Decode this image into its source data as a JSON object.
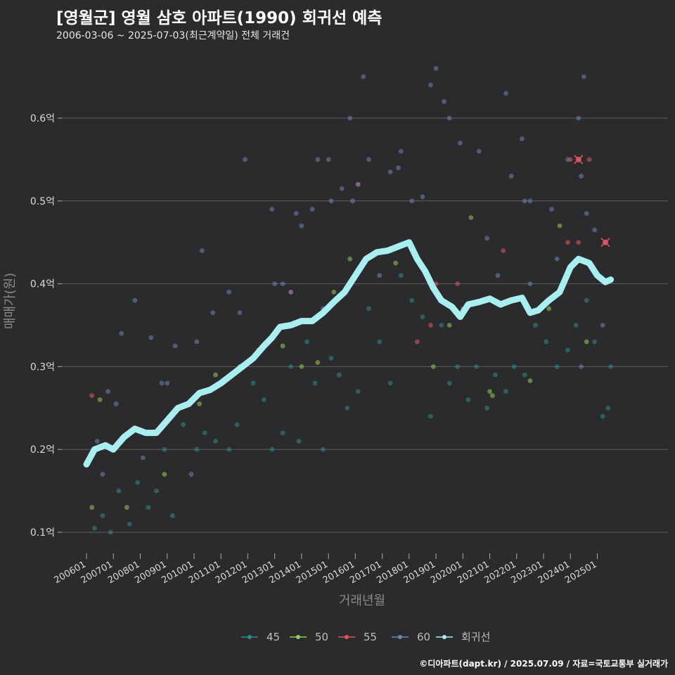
{
  "header": {
    "title": "[영월군] 영월 삼호 아파트(1990) 회귀선 예측",
    "subtitle": "2006-03-06 ~ 2025-07-03(최근계약일) 전체 거래건"
  },
  "footer": {
    "credit": "©디아파트(dapt.kr) / 2025.07.09 / 자료=국토교통부 실거래가"
  },
  "colors": {
    "background": "#2b2b2d",
    "grid": "#5e5e60",
    "s45": "#2f8a8a",
    "s50": "#8fcf5a",
    "s55": "#e05560",
    "s60": "#6e83b4",
    "regression": "#a9eef0"
  },
  "chart_data": {
    "type": "scatter",
    "xlabel": "거래년월",
    "ylabel": "매매가(원)",
    "ylim": [
      0.075,
      0.685
    ],
    "yticks": [
      {
        "v": 0.1,
        "label": "0.1억"
      },
      {
        "v": 0.2,
        "label": "0.2억"
      },
      {
        "v": 0.3,
        "label": "0.3억"
      },
      {
        "v": 0.4,
        "label": "0.4억"
      },
      {
        "v": 0.5,
        "label": "0.5억"
      },
      {
        "v": 0.6,
        "label": "0.6억"
      }
    ],
    "xticks": [
      "200601",
      "200701",
      "200801",
      "200901",
      "201001",
      "201101",
      "201201",
      "201301",
      "201401",
      "201501",
      "201601",
      "201701",
      "201801",
      "201901",
      "202001",
      "202101",
      "202201",
      "202301",
      "202401",
      "202501"
    ],
    "grid": true,
    "legend_position": "bottom",
    "legend": [
      {
        "name": "45",
        "color_key": "s45"
      },
      {
        "name": "50",
        "color_key": "s50"
      },
      {
        "name": "55",
        "color_key": "s55"
      },
      {
        "name": "60",
        "color_key": "s60"
      },
      {
        "name": "회귀선",
        "color_key": "regression"
      }
    ],
    "series": [
      {
        "name": "45",
        "color_key": "s45",
        "points": [
          [
            2006.3,
            0.105
          ],
          [
            2006.6,
            0.12
          ],
          [
            2006.9,
            0.1
          ],
          [
            2007.2,
            0.15
          ],
          [
            2007.6,
            0.11
          ],
          [
            2007.9,
            0.16
          ],
          [
            2008.3,
            0.13
          ],
          [
            2008.6,
            0.15
          ],
          [
            2008.9,
            0.2
          ],
          [
            2009.2,
            0.12
          ],
          [
            2009.6,
            0.23
          ],
          [
            2010.1,
            0.2
          ],
          [
            2010.4,
            0.22
          ],
          [
            2010.8,
            0.21
          ],
          [
            2011.3,
            0.2
          ],
          [
            2011.6,
            0.23
          ],
          [
            2012.2,
            0.28
          ],
          [
            2012.6,
            0.26
          ],
          [
            2012.9,
            0.2
          ],
          [
            2013.3,
            0.22
          ],
          [
            2013.6,
            0.3
          ],
          [
            2013.9,
            0.21
          ],
          [
            2014.2,
            0.33
          ],
          [
            2014.5,
            0.28
          ],
          [
            2014.8,
            0.2
          ],
          [
            2015.1,
            0.31
          ],
          [
            2015.4,
            0.29
          ],
          [
            2015.7,
            0.25
          ],
          [
            2016.1,
            0.27
          ],
          [
            2016.5,
            0.37
          ],
          [
            2016.9,
            0.33
          ],
          [
            2017.3,
            0.28
          ],
          [
            2017.7,
            0.41
          ],
          [
            2018.1,
            0.38
          ],
          [
            2018.5,
            0.36
          ],
          [
            2018.8,
            0.24
          ],
          [
            2019.2,
            0.35
          ],
          [
            2019.5,
            0.28
          ],
          [
            2019.8,
            0.3
          ],
          [
            2020.2,
            0.26
          ],
          [
            2020.5,
            0.3
          ],
          [
            2020.9,
            0.25
          ],
          [
            2021.2,
            0.29
          ],
          [
            2021.6,
            0.27
          ],
          [
            2021.9,
            0.3
          ],
          [
            2022.3,
            0.29
          ],
          [
            2022.7,
            0.35
          ],
          [
            2023.1,
            0.33
          ],
          [
            2023.5,
            0.3
          ],
          [
            2023.9,
            0.32
          ],
          [
            2024.2,
            0.35
          ],
          [
            2024.6,
            0.38
          ],
          [
            2024.9,
            0.33
          ],
          [
            2025.2,
            0.24
          ],
          [
            2025.4,
            0.25
          ],
          [
            2025.5,
            0.3
          ]
        ]
      },
      {
        "name": "50",
        "color_key": "s50",
        "points": [
          [
            2006.2,
            0.13
          ],
          [
            2006.5,
            0.26
          ],
          [
            2007.5,
            0.13
          ],
          [
            2008.9,
            0.17
          ],
          [
            2010.2,
            0.255
          ],
          [
            2010.8,
            0.29
          ],
          [
            2011.7,
            0.3
          ],
          [
            2012.4,
            0.32
          ],
          [
            2013.3,
            0.325
          ],
          [
            2014.0,
            0.3
          ],
          [
            2014.6,
            0.305
          ],
          [
            2015.2,
            0.39
          ],
          [
            2015.8,
            0.43
          ],
          [
            2017.5,
            0.425
          ],
          [
            2018.9,
            0.3
          ],
          [
            2019.5,
            0.35
          ],
          [
            2020.3,
            0.48
          ],
          [
            2021.0,
            0.27
          ],
          [
            2021.1,
            0.265
          ],
          [
            2022.5,
            0.283
          ],
          [
            2023.2,
            0.37
          ],
          [
            2023.6,
            0.47
          ],
          [
            2024.6,
            0.33
          ]
        ]
      },
      {
        "name": "55",
        "color_key": "s55",
        "points": [
          [
            2006.2,
            0.265
          ],
          [
            2013.6,
            0.39
          ],
          [
            2016.1,
            0.52
          ],
          [
            2018.3,
            0.33
          ],
          [
            2018.8,
            0.35
          ],
          [
            2019.0,
            0.4
          ],
          [
            2019.8,
            0.4
          ],
          [
            2021.5,
            0.44
          ],
          [
            2023.9,
            0.45
          ],
          [
            2024.0,
            0.55
          ],
          [
            2024.3,
            0.45
          ],
          [
            2024.7,
            0.55
          ],
          [
            2025.3,
            0.45
          ]
        ]
      },
      {
        "name": "60",
        "color_key": "s60",
        "points": [
          [
            2006.4,
            0.21
          ],
          [
            2006.6,
            0.17
          ],
          [
            2006.8,
            0.27
          ],
          [
            2007.1,
            0.255
          ],
          [
            2007.3,
            0.34
          ],
          [
            2007.8,
            0.38
          ],
          [
            2008.1,
            0.19
          ],
          [
            2008.4,
            0.335
          ],
          [
            2008.8,
            0.28
          ],
          [
            2009.0,
            0.28
          ],
          [
            2009.3,
            0.325
          ],
          [
            2009.9,
            0.17
          ],
          [
            2010.1,
            0.33
          ],
          [
            2010.3,
            0.44
          ],
          [
            2010.7,
            0.365
          ],
          [
            2011.3,
            0.39
          ],
          [
            2011.7,
            0.365
          ],
          [
            2011.9,
            0.55
          ],
          [
            2012.9,
            0.49
          ],
          [
            2013.0,
            0.4
          ],
          [
            2013.3,
            0.4
          ],
          [
            2013.6,
            0.39
          ],
          [
            2013.8,
            0.485
          ],
          [
            2014.0,
            0.47
          ],
          [
            2014.4,
            0.49
          ],
          [
            2014.6,
            0.55
          ],
          [
            2014.8,
            0.37
          ],
          [
            2015.0,
            0.55
          ],
          [
            2015.1,
            0.5
          ],
          [
            2015.5,
            0.515
          ],
          [
            2015.8,
            0.6
          ],
          [
            2015.9,
            0.5
          ],
          [
            2016.1,
            0.52
          ],
          [
            2016.3,
            0.65
          ],
          [
            2016.5,
            0.55
          ],
          [
            2016.9,
            0.41
          ],
          [
            2017.3,
            0.535
          ],
          [
            2017.6,
            0.54
          ],
          [
            2017.7,
            0.56
          ],
          [
            2018.1,
            0.5
          ],
          [
            2018.5,
            0.505
          ],
          [
            2018.8,
            0.64
          ],
          [
            2019.0,
            0.66
          ],
          [
            2019.3,
            0.62
          ],
          [
            2019.5,
            0.6
          ],
          [
            2019.9,
            0.57
          ],
          [
            2020.0,
            0.37
          ],
          [
            2020.6,
            0.56
          ],
          [
            2020.9,
            0.455
          ],
          [
            2021.3,
            0.41
          ],
          [
            2021.6,
            0.63
          ],
          [
            2021.8,
            0.53
          ],
          [
            2022.2,
            0.575
          ],
          [
            2022.3,
            0.5
          ],
          [
            2022.5,
            0.5
          ],
          [
            2022.5,
            0.4
          ],
          [
            2022.9,
            0.37
          ],
          [
            2023.3,
            0.49
          ],
          [
            2023.5,
            0.43
          ],
          [
            2023.9,
            0.55
          ],
          [
            2024.3,
            0.6
          ],
          [
            2024.4,
            0.53
          ],
          [
            2024.5,
            0.65
          ],
          [
            2024.6,
            0.485
          ],
          [
            2024.9,
            0.465
          ],
          [
            2024.4,
            0.3
          ],
          [
            2025.2,
            0.35
          ]
        ]
      }
    ],
    "highlighted": [
      [
        2024.3,
        0.55
      ],
      [
        2025.3,
        0.45
      ]
    ],
    "regression": {
      "name": "회귀선",
      "points": [
        [
          2006.0,
          0.182
        ],
        [
          2006.3,
          0.2
        ],
        [
          2006.7,
          0.205
        ],
        [
          2007.0,
          0.2
        ],
        [
          2007.4,
          0.215
        ],
        [
          2007.8,
          0.225
        ],
        [
          2008.2,
          0.22
        ],
        [
          2008.6,
          0.22
        ],
        [
          2009.0,
          0.235
        ],
        [
          2009.4,
          0.25
        ],
        [
          2009.8,
          0.255
        ],
        [
          2010.2,
          0.268
        ],
        [
          2010.6,
          0.272
        ],
        [
          2011.0,
          0.28
        ],
        [
          2011.4,
          0.29
        ],
        [
          2011.8,
          0.3
        ],
        [
          2012.2,
          0.31
        ],
        [
          2012.6,
          0.325
        ],
        [
          2012.9,
          0.335
        ],
        [
          2013.2,
          0.348
        ],
        [
          2013.6,
          0.35
        ],
        [
          2014.0,
          0.355
        ],
        [
          2014.4,
          0.355
        ],
        [
          2014.8,
          0.365
        ],
        [
          2015.2,
          0.378
        ],
        [
          2015.6,
          0.39
        ],
        [
          2016.0,
          0.41
        ],
        [
          2016.4,
          0.43
        ],
        [
          2016.8,
          0.438
        ],
        [
          2017.2,
          0.44
        ],
        [
          2017.6,
          0.445
        ],
        [
          2018.0,
          0.45
        ],
        [
          2018.3,
          0.43
        ],
        [
          2018.6,
          0.415
        ],
        [
          2018.9,
          0.395
        ],
        [
          2019.2,
          0.38
        ],
        [
          2019.6,
          0.372
        ],
        [
          2019.9,
          0.36
        ],
        [
          2020.2,
          0.375
        ],
        [
          2020.6,
          0.378
        ],
        [
          2021.0,
          0.382
        ],
        [
          2021.4,
          0.375
        ],
        [
          2021.8,
          0.38
        ],
        [
          2022.2,
          0.383
        ],
        [
          2022.5,
          0.365
        ],
        [
          2022.8,
          0.368
        ],
        [
          2023.2,
          0.38
        ],
        [
          2023.6,
          0.39
        ],
        [
          2024.0,
          0.42
        ],
        [
          2024.3,
          0.43
        ],
        [
          2024.7,
          0.425
        ],
        [
          2025.0,
          0.41
        ],
        [
          2025.3,
          0.402
        ],
        [
          2025.5,
          0.405
        ]
      ]
    }
  }
}
